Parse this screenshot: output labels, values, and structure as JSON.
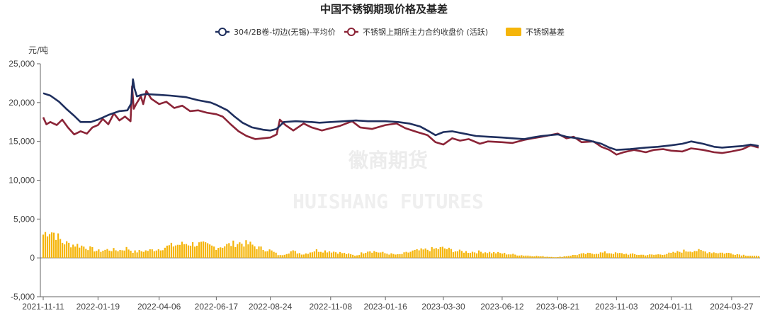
{
  "chart_data": {
    "type": "bar+line",
    "title": "中国不锈钢期现价格及基差",
    "y_unit": "元/吨",
    "ylim": [
      -5000,
      25000
    ],
    "y_ticks": [
      "-5,000",
      "0",
      "5,000",
      "10,000",
      "15,000",
      "20,000",
      "25,000"
    ],
    "y_tick_values": [
      -5000,
      0,
      5000,
      10000,
      15000,
      20000,
      25000
    ],
    "x_ticks": [
      "2021-11-11",
      "2022-01-19",
      "2022-04-06",
      "2022-06-17",
      "2022-08-24",
      "2022-11-08",
      "2023-01-16",
      "2023-03-30",
      "2023-06-12",
      "2023-08-21",
      "2023-11-03",
      "2024-01-11",
      "2024-03-27"
    ],
    "x_range": [
      "2021-11-11",
      "2024-04-30"
    ],
    "legend_position": "top-center",
    "grid": false,
    "watermark": {
      "cn": "徽商期货",
      "en": "HUISHANG FUTURES"
    },
    "colors": {
      "spot": "#1f2f5e",
      "futures": "#8b2437",
      "basis": "#f5b50a"
    },
    "series": [
      {
        "name": "304/2B卷-切边(无锡)-平均价",
        "type": "line",
        "points": [
          [
            "2021-11-11",
            21200
          ],
          [
            "2021-11-20",
            20900
          ],
          [
            "2021-12-01",
            20100
          ],
          [
            "2021-12-10",
            19200
          ],
          [
            "2021-12-20",
            18300
          ],
          [
            "2021-12-28",
            17500
          ],
          [
            "2022-01-10",
            17500
          ],
          [
            "2022-01-19",
            17800
          ],
          [
            "2022-02-01",
            18400
          ],
          [
            "2022-02-15",
            18900
          ],
          [
            "2022-02-25",
            19000
          ],
          [
            "2022-03-02",
            19900
          ],
          [
            "2022-03-04",
            23000
          ],
          [
            "2022-03-06",
            21800
          ],
          [
            "2022-03-09",
            20800
          ],
          [
            "2022-03-15",
            21000
          ],
          [
            "2022-03-20",
            21100
          ],
          [
            "2022-04-06",
            21000
          ],
          [
            "2022-04-20",
            20900
          ],
          [
            "2022-05-10",
            20700
          ],
          [
            "2022-05-25",
            20300
          ],
          [
            "2022-06-10",
            20000
          ],
          [
            "2022-06-17",
            19700
          ],
          [
            "2022-07-01",
            19000
          ],
          [
            "2022-07-10",
            18200
          ],
          [
            "2022-07-20",
            17400
          ],
          [
            "2022-08-01",
            16800
          ],
          [
            "2022-08-15",
            16500
          ],
          [
            "2022-08-24",
            16400
          ],
          [
            "2022-09-01",
            16600
          ],
          [
            "2022-09-10",
            17500
          ],
          [
            "2022-09-25",
            17600
          ],
          [
            "2022-10-15",
            17500
          ],
          [
            "2022-10-25",
            17400
          ],
          [
            "2022-11-08",
            17500
          ],
          [
            "2022-11-25",
            17600
          ],
          [
            "2022-12-10",
            17700
          ],
          [
            "2022-12-25",
            17600
          ],
          [
            "2023-01-16",
            17600
          ],
          [
            "2023-02-01",
            17500
          ],
          [
            "2023-02-15",
            17300
          ],
          [
            "2023-03-01",
            16900
          ],
          [
            "2023-03-10",
            16400
          ],
          [
            "2023-03-20",
            15800
          ],
          [
            "2023-03-30",
            16200
          ],
          [
            "2023-04-10",
            16300
          ],
          [
            "2023-04-25",
            16000
          ],
          [
            "2023-05-10",
            15700
          ],
          [
            "2023-05-25",
            15600
          ],
          [
            "2023-06-12",
            15500
          ],
          [
            "2023-06-25",
            15400
          ],
          [
            "2023-07-10",
            15300
          ],
          [
            "2023-07-20",
            15500
          ],
          [
            "2023-08-01",
            15700
          ],
          [
            "2023-08-21",
            15900
          ],
          [
            "2023-09-01",
            15600
          ],
          [
            "2023-09-15",
            15400
          ],
          [
            "2023-09-30",
            15100
          ],
          [
            "2023-10-15",
            14700
          ],
          [
            "2023-10-25",
            14200
          ],
          [
            "2023-11-03",
            13900
          ],
          [
            "2023-11-20",
            14000
          ],
          [
            "2023-12-10",
            14200
          ],
          [
            "2023-12-25",
            14300
          ],
          [
            "2024-01-11",
            14500
          ],
          [
            "2024-01-25",
            14700
          ],
          [
            "2024-02-05",
            15000
          ],
          [
            "2024-02-20",
            14700
          ],
          [
            "2024-03-05",
            14300
          ],
          [
            "2024-03-15",
            14200
          ],
          [
            "2024-03-27",
            14300
          ],
          [
            "2024-04-10",
            14400
          ],
          [
            "2024-04-20",
            14600
          ],
          [
            "2024-04-30",
            14400
          ]
        ]
      },
      {
        "name": "不锈钢上期所主力合约收盘价 (活跃)",
        "type": "line",
        "points": [
          [
            "2021-11-11",
            18100
          ],
          [
            "2021-11-15",
            17200
          ],
          [
            "2021-11-20",
            17500
          ],
          [
            "2021-11-28",
            17100
          ],
          [
            "2021-12-05",
            17800
          ],
          [
            "2021-12-12",
            16800
          ],
          [
            "2021-12-20",
            15900
          ],
          [
            "2021-12-28",
            16300
          ],
          [
            "2022-01-05",
            16000
          ],
          [
            "2022-01-12",
            16800
          ],
          [
            "2022-01-19",
            17100
          ],
          [
            "2022-01-25",
            17900
          ],
          [
            "2022-02-01",
            17200
          ],
          [
            "2022-02-08",
            18600
          ],
          [
            "2022-02-15",
            17700
          ],
          [
            "2022-02-22",
            18200
          ],
          [
            "2022-03-01",
            17600
          ],
          [
            "2022-03-03",
            22100
          ],
          [
            "2022-03-05",
            19200
          ],
          [
            "2022-03-08",
            19800
          ],
          [
            "2022-03-14",
            20800
          ],
          [
            "2022-03-17",
            19800
          ],
          [
            "2022-03-21",
            21500
          ],
          [
            "2022-03-27",
            20500
          ],
          [
            "2022-04-06",
            19800
          ],
          [
            "2022-04-15",
            20100
          ],
          [
            "2022-04-25",
            19300
          ],
          [
            "2022-05-05",
            19600
          ],
          [
            "2022-05-15",
            18900
          ],
          [
            "2022-05-25",
            19000
          ],
          [
            "2022-06-05",
            18700
          ],
          [
            "2022-06-17",
            18500
          ],
          [
            "2022-06-25",
            18200
          ],
          [
            "2022-07-05",
            17200
          ],
          [
            "2022-07-15",
            16300
          ],
          [
            "2022-07-25",
            15700
          ],
          [
            "2022-08-05",
            15300
          ],
          [
            "2022-08-15",
            15400
          ],
          [
            "2022-08-24",
            15500
          ],
          [
            "2022-09-01",
            15900
          ],
          [
            "2022-09-05",
            17800
          ],
          [
            "2022-09-12",
            17100
          ],
          [
            "2022-09-22",
            16400
          ],
          [
            "2022-10-05",
            17300
          ],
          [
            "2022-10-15",
            16800
          ],
          [
            "2022-10-28",
            16400
          ],
          [
            "2022-11-08",
            16700
          ],
          [
            "2022-11-20",
            17000
          ],
          [
            "2022-12-05",
            17600
          ],
          [
            "2022-12-15",
            16800
          ],
          [
            "2022-12-30",
            16600
          ],
          [
            "2023-01-16",
            17100
          ],
          [
            "2023-01-30",
            17300
          ],
          [
            "2023-02-10",
            16700
          ],
          [
            "2023-02-25",
            16200
          ],
          [
            "2023-03-10",
            15800
          ],
          [
            "2023-03-20",
            14900
          ],
          [
            "2023-03-30",
            14600
          ],
          [
            "2023-04-10",
            15400
          ],
          [
            "2023-04-20",
            15100
          ],
          [
            "2023-05-01",
            15300
          ],
          [
            "2023-05-15",
            14700
          ],
          [
            "2023-05-25",
            15000
          ],
          [
            "2023-06-12",
            14900
          ],
          [
            "2023-06-25",
            14800
          ],
          [
            "2023-07-10",
            15200
          ],
          [
            "2023-07-20",
            15400
          ],
          [
            "2023-08-01",
            15600
          ],
          [
            "2023-08-21",
            16000
          ],
          [
            "2023-09-01",
            15400
          ],
          [
            "2023-09-10",
            15600
          ],
          [
            "2023-09-20",
            14900
          ],
          [
            "2023-10-05",
            15000
          ],
          [
            "2023-10-15",
            14300
          ],
          [
            "2023-10-25",
            13900
          ],
          [
            "2023-11-03",
            13300
          ],
          [
            "2023-11-12",
            13600
          ],
          [
            "2023-11-25",
            13900
          ],
          [
            "2023-12-10",
            13600
          ],
          [
            "2023-12-20",
            13900
          ],
          [
            "2024-01-01",
            14000
          ],
          [
            "2024-01-11",
            13800
          ],
          [
            "2024-01-25",
            13700
          ],
          [
            "2024-02-05",
            14100
          ],
          [
            "2024-02-20",
            13900
          ],
          [
            "2024-03-05",
            13600
          ],
          [
            "2024-03-15",
            13500
          ],
          [
            "2024-03-27",
            13700
          ],
          [
            "2024-04-10",
            14000
          ],
          [
            "2024-04-20",
            14500
          ],
          [
            "2024-04-30",
            14200
          ]
        ]
      },
      {
        "name": "不锈钢基差",
        "type": "bar",
        "points": [
          [
            "2021-11-11",
            3100
          ],
          [
            "2021-11-18",
            3700
          ],
          [
            "2021-11-25",
            3300
          ],
          [
            "2021-12-05",
            2100
          ],
          [
            "2021-12-15",
            1800
          ],
          [
            "2021-12-25",
            1700
          ],
          [
            "2022-01-05",
            1400
          ],
          [
            "2022-01-19",
            900
          ],
          [
            "2022-02-01",
            1100
          ],
          [
            "2022-02-15",
            1000
          ],
          [
            "2022-02-25",
            1300
          ],
          [
            "2022-03-05",
            800
          ],
          [
            "2022-03-15",
            900
          ],
          [
            "2022-03-25",
            1000
          ],
          [
            "2022-04-06",
            1200
          ],
          [
            "2022-04-20",
            1600
          ],
          [
            "2022-05-10",
            1900
          ],
          [
            "2022-05-30",
            1800
          ],
          [
            "2022-06-17",
            1400
          ],
          [
            "2022-07-01",
            1700
          ],
          [
            "2022-07-15",
            2000
          ],
          [
            "2022-07-30",
            1800
          ],
          [
            "2022-08-10",
            1300
          ],
          [
            "2022-08-24",
            1000
          ],
          [
            "2022-09-05",
            300
          ],
          [
            "2022-09-20",
            900
          ],
          [
            "2022-10-05",
            500
          ],
          [
            "2022-10-20",
            1000
          ],
          [
            "2022-11-08",
            900
          ],
          [
            "2022-11-25",
            600
          ],
          [
            "2022-12-10",
            300
          ],
          [
            "2022-12-25",
            1000
          ],
          [
            "2023-01-16",
            600
          ],
          [
            "2023-02-01",
            400
          ],
          [
            "2023-02-20",
            900
          ],
          [
            "2023-03-10",
            1100
          ],
          [
            "2023-03-30",
            1300
          ],
          [
            "2023-04-15",
            900
          ],
          [
            "2023-05-01",
            800
          ],
          [
            "2023-05-20",
            800
          ],
          [
            "2023-06-12",
            600
          ],
          [
            "2023-06-30",
            400
          ],
          [
            "2023-07-15",
            300
          ],
          [
            "2023-08-01",
            200
          ],
          [
            "2023-08-21",
            100
          ],
          [
            "2023-09-05",
            300
          ],
          [
            "2023-09-20",
            500
          ],
          [
            "2023-10-05",
            600
          ],
          [
            "2023-10-20",
            700
          ],
          [
            "2023-11-03",
            600
          ],
          [
            "2023-11-20",
            500
          ],
          [
            "2023-12-05",
            400
          ],
          [
            "2023-12-20",
            400
          ],
          [
            "2024-01-11",
            600
          ],
          [
            "2024-01-25",
            900
          ],
          [
            "2024-02-10",
            1000
          ],
          [
            "2024-02-25",
            800
          ],
          [
            "2024-03-10",
            700
          ],
          [
            "2024-03-27",
            600
          ],
          [
            "2024-04-10",
            400
          ],
          [
            "2024-04-30",
            200
          ]
        ]
      }
    ]
  }
}
